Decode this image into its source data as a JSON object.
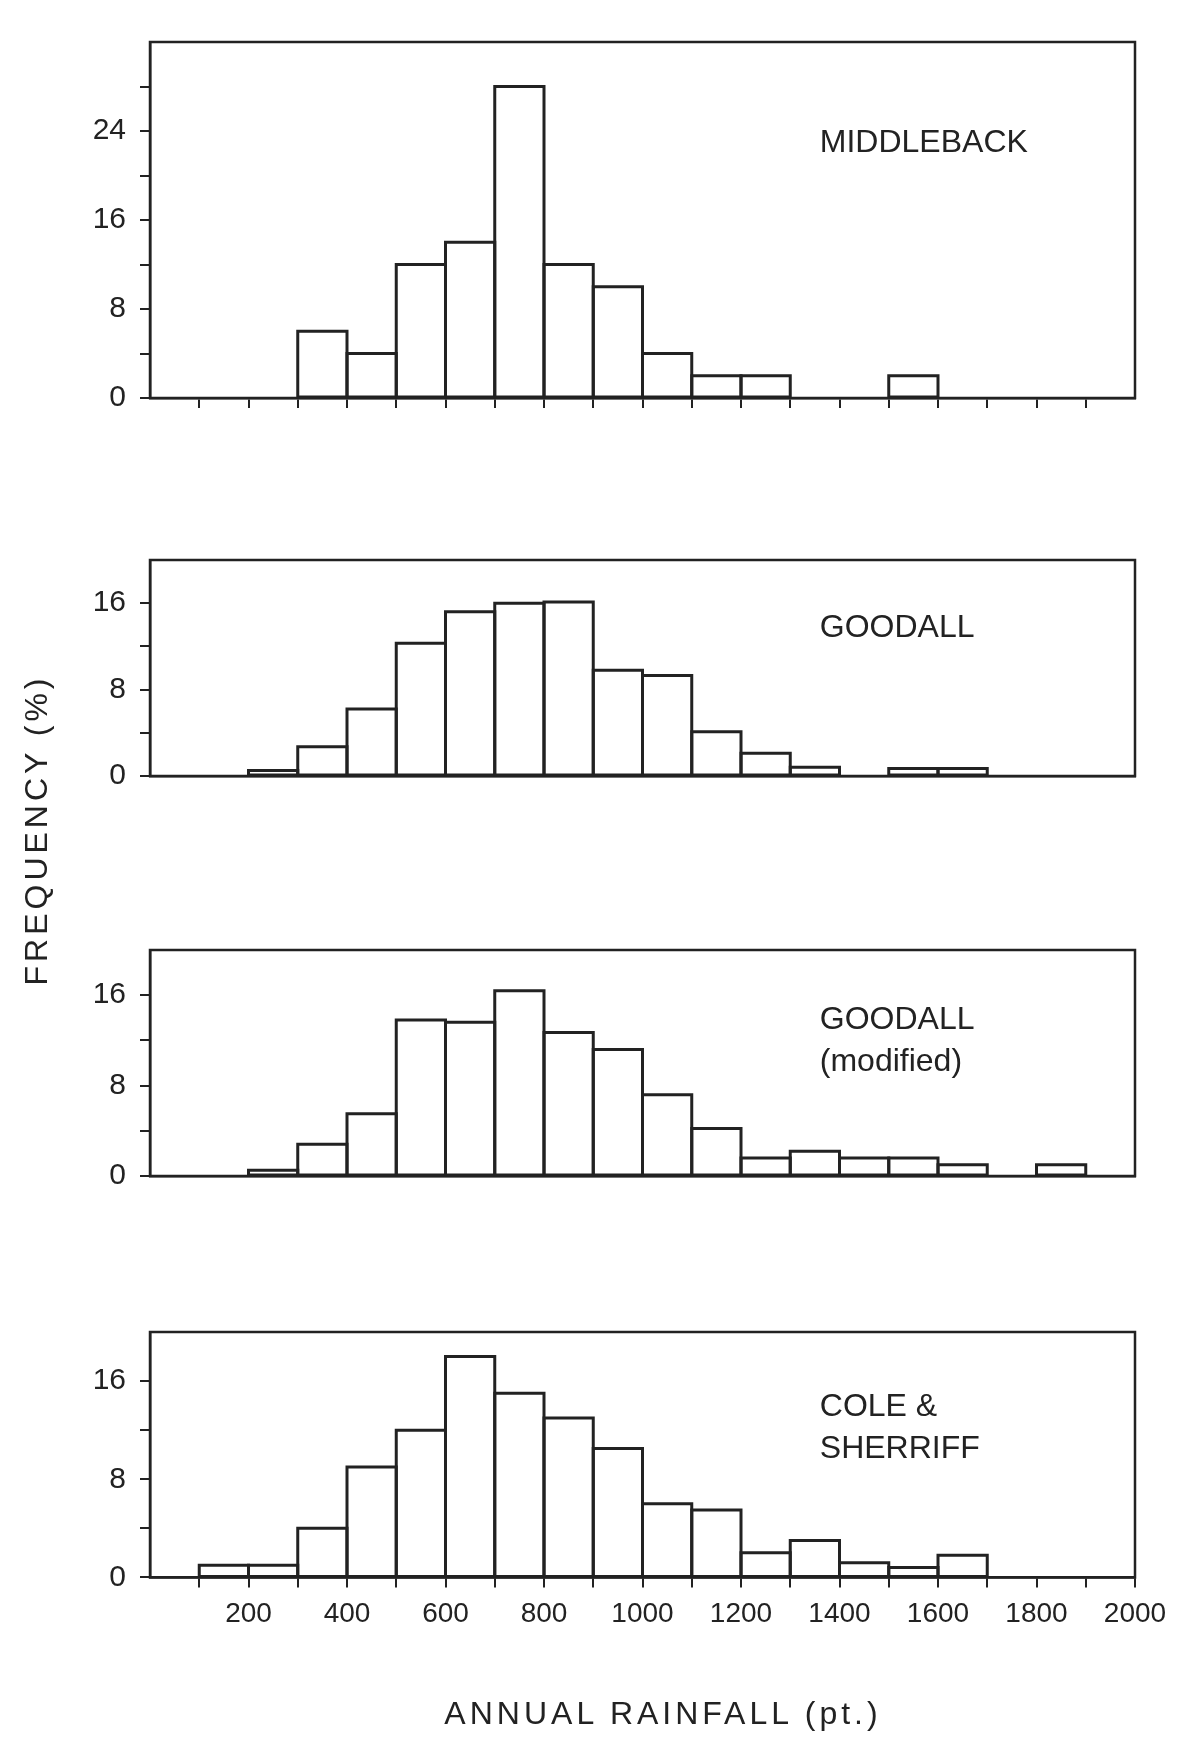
{
  "chart_data": [
    {
      "type": "histogram",
      "annotations": [
        "MIDDLEBACK"
      ],
      "color": "#222222",
      "bins": [
        300,
        400,
        500,
        600,
        700,
        800,
        900,
        1000,
        1100,
        1200,
        1300,
        1400,
        1500,
        1600
      ],
      "values": [
        6,
        4,
        12,
        14,
        28,
        12,
        10,
        4,
        2,
        2,
        0,
        0,
        2
      ],
      "xlim": [
        0,
        2000
      ],
      "xticks": [
        {
          "value": 100,
          "label": null
        },
        200,
        {
          "value": 300,
          "label": null
        },
        400,
        {
          "value": 500,
          "label": null
        },
        600,
        {
          "value": 700,
          "label": null
        },
        800,
        {
          "value": 900,
          "label": null
        },
        1000,
        {
          "value": 1100,
          "label": null
        },
        1200,
        {
          "value": 1300,
          "label": null
        },
        1400,
        {
          "value": 1500,
          "label": null
        },
        1600,
        {
          "value": 1700,
          "label": null
        },
        1800,
        {
          "value": 1900,
          "label": null
        }
      ],
      "ylim": [
        0,
        32
      ],
      "yticks": [
        0,
        {
          "value": 4,
          "label": null
        },
        8,
        {
          "value": 12,
          "label": null
        },
        16,
        {
          "value": 20,
          "label": null
        },
        24,
        {
          "value": 28,
          "label": null
        }
      ],
      "tick_labels": "y"
    },
    {
      "type": "histogram",
      "annotations": [
        "GOODALL"
      ],
      "ylabel": "FREQUENCY (%)",
      "color": "#222222",
      "bins": [
        200,
        300,
        400,
        500,
        600,
        700,
        800,
        900,
        1000,
        1100,
        1200,
        1300,
        1400,
        1500,
        1600,
        1700
      ],
      "values": [
        0.5,
        2.7,
        6.2,
        12.3,
        15.2,
        16,
        16.1,
        9.8,
        9.3,
        4.1,
        2.1,
        0.8,
        0,
        0.7,
        0.7
      ],
      "xlim": [
        0,
        2000
      ],
      "ylim": [
        0,
        20
      ],
      "yticks": [
        0,
        {
          "value": 4,
          "label": null
        },
        8,
        {
          "value": 12,
          "label": null
        },
        16
      ],
      "tick_labels": "y"
    },
    {
      "type": "histogram",
      "annotations": [
        "GOODALL (modified)"
      ],
      "color": "#222222",
      "bins": [
        200,
        300,
        400,
        500,
        600,
        700,
        800,
        900,
        1000,
        1100,
        1200,
        1300,
        1400,
        1500,
        1600,
        1700,
        1800,
        1900
      ],
      "values": [
        0.5,
        2.8,
        5.5,
        13.8,
        13.6,
        16.4,
        12.7,
        11.2,
        7.2,
        4.2,
        1.6,
        2.2,
        1.6,
        1.6,
        1,
        0,
        1
      ],
      "xlim": [
        0,
        2000
      ],
      "ylim": [
        0,
        20
      ],
      "yticks": [
        0,
        {
          "value": 4,
          "label": null
        },
        8,
        {
          "value": 12,
          "label": null
        },
        16
      ],
      "tick_labels": "y"
    },
    {
      "type": "histogram",
      "annotations": [
        "COLE & SHERRIFF"
      ],
      "xlabel": "ANNUAL RAINFALL (pt.)",
      "color": "#222222",
      "bins": [
        100,
        200,
        300,
        400,
        500,
        600,
        700,
        800,
        900,
        1000,
        1100,
        1200,
        1300,
        1400,
        1500,
        1600,
        1700
      ],
      "values": [
        1,
        1,
        4,
        9,
        12,
        18,
        15,
        13,
        10.5,
        6,
        5.5,
        2,
        3,
        1.2,
        0.8,
        1.8
      ],
      "xlim": [
        0,
        2000
      ],
      "xticks": [
        {
          "value": 100,
          "label": null
        },
        200,
        {
          "value": 300,
          "label": null
        },
        400,
        {
          "value": 500,
          "label": null
        },
        600,
        {
          "value": 700,
          "label": null
        },
        800,
        {
          "value": 900,
          "label": null
        },
        1000,
        {
          "value": 1100,
          "label": null
        },
        1200,
        {
          "value": 1300,
          "label": null
        },
        1400,
        {
          "value": 1500,
          "label": null
        },
        1600,
        {
          "value": 1700,
          "label": null
        },
        1800,
        {
          "value": 1900,
          "label": null
        },
        2000
      ],
      "ylim": [
        0,
        20
      ],
      "yticks": [
        0,
        {
          "value": 4,
          "label": null
        },
        8,
        {
          "value": 12,
          "label": null
        },
        16
      ]
    }
  ]
}
